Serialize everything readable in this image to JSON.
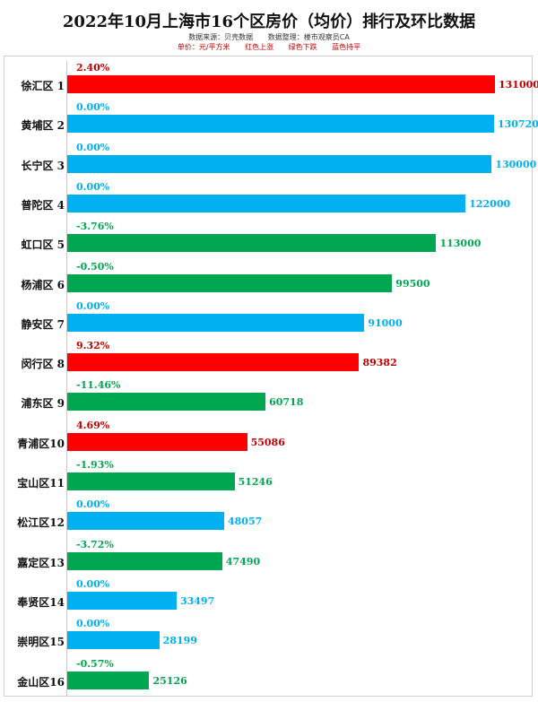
{
  "header": {
    "title": "2022年10月上海市16个区房价（均价）排行及环比数据",
    "source": "数据来源：贝壳数据",
    "editor": "数据整理：楼市观察员CA",
    "unit": "单价：元/平方米",
    "legend_red": "红色上涨",
    "legend_green": "绿色下跌",
    "legend_blue": "蓝色持平"
  },
  "colors": {
    "up": "#ff0000",
    "down": "#00a650",
    "flat": "#00b0f0",
    "up_text": "#c00000",
    "down_text": "#00a650",
    "flat_text": "#00b0f0"
  },
  "chart_data": {
    "type": "bar",
    "orientation": "horizontal",
    "title": "2022年10月上海市16个区房价（均价）排行及环比数据",
    "unit": "元/平方米",
    "categories": [
      "徐汇区 1",
      "黄埔区 2",
      "长宁区 3",
      "普陀区 4",
      "虹口区 5",
      "杨浦区 6",
      "静安区 7",
      "闵行区 8",
      "浦东区 9",
      "青浦区10",
      "宝山区11",
      "松江区12",
      "嘉定区13",
      "奉贤区14",
      "崇明区15",
      "金山区16"
    ],
    "values": [
      131000,
      130720,
      130000,
      122000,
      113000,
      99500,
      91000,
      89382,
      60718,
      55086,
      51246,
      48057,
      47490,
      33497,
      28199,
      25126
    ],
    "changes": [
      "2.40%",
      "0.00%",
      "0.00%",
      "0.00%",
      "-3.76%",
      "-0.50%",
      "0.00%",
      "9.32%",
      "-11.46%",
      "4.69%",
      "-1.93%",
      "0.00%",
      "-3.72%",
      "0.00%",
      "0.00%",
      "-0.57%"
    ],
    "trend": [
      "up",
      "flat",
      "flat",
      "flat",
      "down",
      "down",
      "flat",
      "up",
      "down",
      "up",
      "down",
      "flat",
      "down",
      "flat",
      "flat",
      "down"
    ],
    "xlim": [
      0,
      131000
    ]
  }
}
